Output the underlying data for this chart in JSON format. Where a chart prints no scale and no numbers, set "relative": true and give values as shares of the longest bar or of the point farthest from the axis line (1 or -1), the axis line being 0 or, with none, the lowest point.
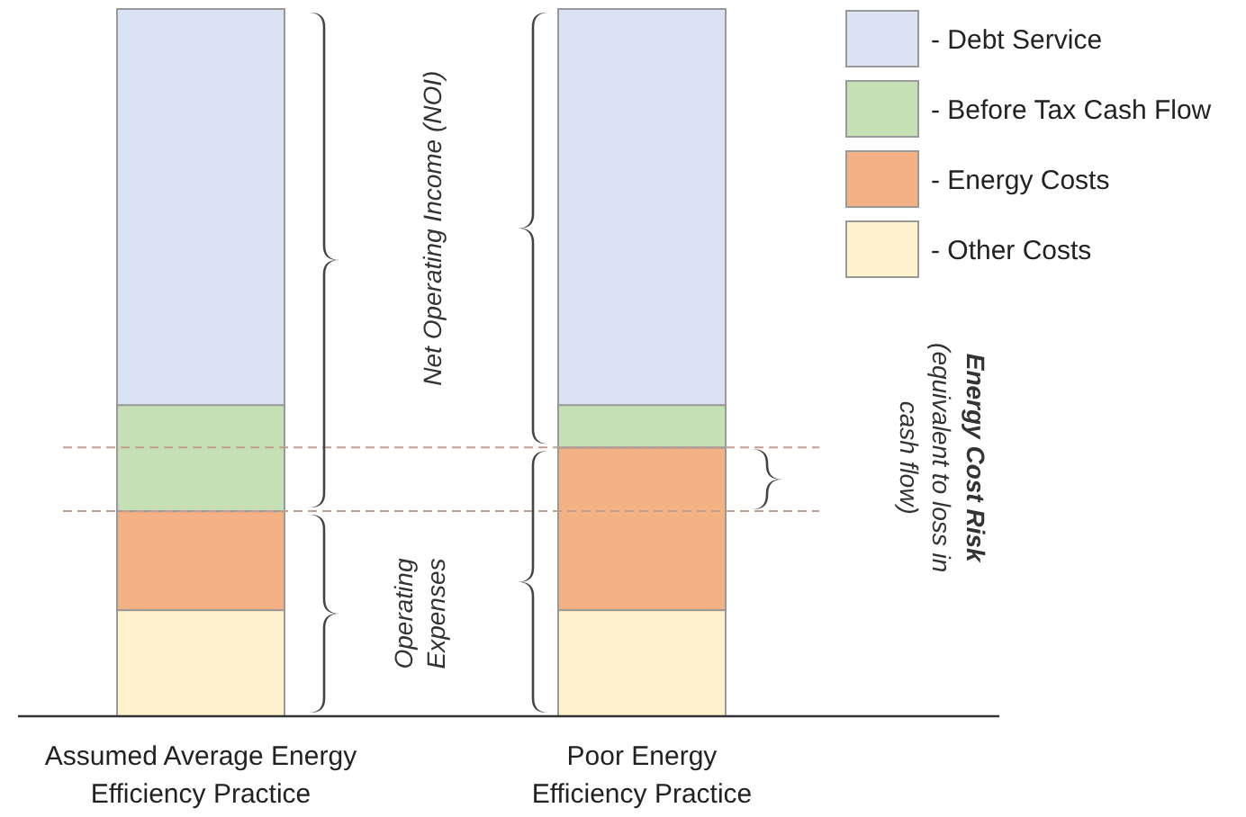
{
  "chart_data": {
    "type": "bar",
    "stacked": true,
    "relative": true,
    "categories": [
      "Assumed Average Energy\nEfficiency Practice",
      "Poor Energy\nEfficiency Practice"
    ],
    "series": [
      {
        "name": "- Other Costs",
        "color": "#fff2cc",
        "values": [
          0.15,
          0.15
        ]
      },
      {
        "name": "- Energy Costs",
        "color": "#f4b183",
        "values": [
          0.14,
          0.23
        ]
      },
      {
        "name": "- Before Tax Cash Flow",
        "color": "#c5e0b4",
        "values": [
          0.15,
          0.06
        ]
      },
      {
        "name": "- Debt Service",
        "color": "#dae3f3",
        "values": [
          0.56,
          0.56
        ]
      }
    ],
    "ref_lines": [
      {
        "axis": "y",
        "value": 0.29,
        "color": "#c0a090",
        "line_style": "dashed"
      },
      {
        "axis": "y",
        "value": 0.38,
        "color": "#c0a090",
        "line_style": "dashed"
      }
    ],
    "annotations": [
      "Net Operating Income (NOI)",
      "Operating\nExpenses",
      "Energy Cost Risk",
      "(equivalent to loss in\ncash flow)"
    ],
    "legend": "top right"
  }
}
